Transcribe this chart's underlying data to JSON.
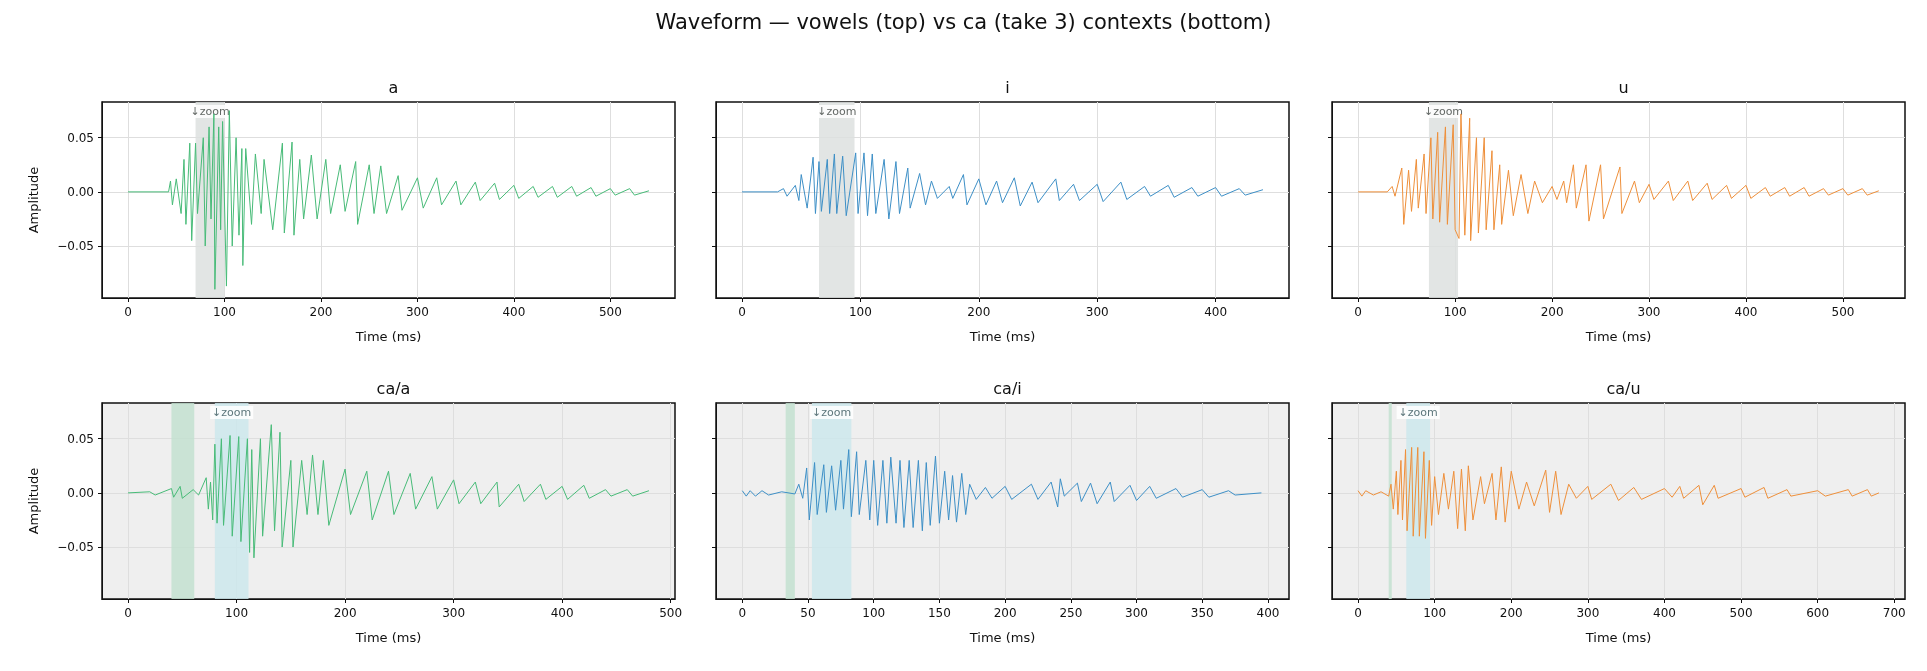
{
  "chart_data": [
    {
      "type": "line",
      "title": "a",
      "xlabel": "Time (ms)",
      "ylabel": "Amplitude",
      "annotations": [
        "Waveform — vowels (top) vs ca (take 3) contexts (bottom)"
      ],
      "xlim": [
        -27,
        567
      ],
      "ylim": [
        -0.098,
        0.083
      ],
      "xticks": [
        0,
        100,
        200,
        300,
        400,
        500
      ],
      "yticks": [
        {
          "value": -0.05,
          "label": "−0.05"
        },
        {
          "value": 0,
          "label": "0.00"
        },
        {
          "value": 0.05,
          "label": "0.05"
        }
      ],
      "grid": true,
      "marker": "none",
      "bands": [
        {
          "axis": "x",
          "from": 70,
          "to": 100,
          "label": "↓zoom",
          "color": "#dde1df"
        }
      ],
      "series": [
        {
          "color": "#48bb78",
          "x": [
            0,
            42,
            44,
            46,
            50,
            55,
            58,
            60,
            64,
            66,
            70,
            72,
            78,
            80,
            84,
            86,
            89,
            90,
            94,
            96,
            98,
            102,
            105,
            108,
            112,
            115,
            118,
            119,
            122,
            128,
            132,
            138,
            141,
            150,
            160,
            162,
            170,
            172,
            178,
            182,
            190,
            196,
            205,
            210,
            220,
            225,
            236,
            238,
            250,
            255,
            262,
            268,
            280,
            284,
            300,
            306,
            320,
            325,
            340,
            345,
            360,
            365,
            380,
            385,
            400,
            405,
            420,
            425,
            440,
            445,
            460,
            465,
            480,
            485,
            500,
            505,
            520,
            525,
            540
          ],
          "values": [
            0,
            0,
            0.01,
            -0.012,
            0.012,
            -0.02,
            0.03,
            -0.03,
            0.045,
            -0.045,
            0.045,
            -0.02,
            0.05,
            -0.05,
            0.06,
            -0.025,
            0.072,
            -0.09,
            0.06,
            -0.035,
            0.065,
            -0.087,
            0.075,
            -0.05,
            0.05,
            -0.04,
            0.04,
            -0.068,
            0.04,
            -0.03,
            0.035,
            -0.02,
            0.03,
            -0.035,
            0.045,
            -0.038,
            0.046,
            -0.04,
            0.03,
            -0.025,
            0.034,
            -0.025,
            0.03,
            -0.02,
            0.025,
            -0.018,
            0.028,
            -0.03,
            0.025,
            -0.02,
            0.024,
            -0.02,
            0.015,
            -0.017,
            0.013,
            -0.015,
            0.013,
            -0.012,
            0.01,
            -0.012,
            0.009,
            -0.008,
            0.008,
            -0.007,
            0.006,
            -0.006,
            0.005,
            -0.005,
            0.005,
            -0.005,
            0.005,
            -0.004,
            0.004,
            -0.004,
            0.003,
            -0.003,
            0.003,
            -0.003,
            0.001
          ]
        }
      ]
    },
    {
      "type": "line",
      "title": "i",
      "xlabel": "Time (ms)",
      "tick_labels": "x",
      "xlim": [
        -22,
        462
      ],
      "ylim": [
        -0.098,
        0.083
      ],
      "xticks": [
        0,
        100,
        200,
        300,
        400
      ],
      "yticks": [
        {
          "value": -0.05,
          "label": null
        },
        {
          "value": 0,
          "label": null
        },
        {
          "value": 0.05,
          "label": null
        }
      ],
      "grid": true,
      "marker": "none",
      "bands": [
        {
          "axis": "x",
          "from": 65,
          "to": 95,
          "label": "↓zoom",
          "color": "#dde1df"
        }
      ],
      "series": [
        {
          "color": "#3d8fc6",
          "x": [
            0,
            30,
            35,
            38,
            45,
            48,
            50,
            55,
            60,
            62,
            65,
            67,
            72,
            74,
            78,
            80,
            85,
            88,
            96,
            98,
            103,
            106,
            110,
            113,
            120,
            124,
            130,
            133,
            140,
            142,
            150,
            155,
            160,
            165,
            175,
            178,
            187,
            190,
            200,
            206,
            215,
            220,
            230,
            235,
            245,
            250,
            265,
            268,
            280,
            285,
            300,
            305,
            320,
            325,
            340,
            345,
            360,
            365,
            380,
            385,
            400,
            405,
            420,
            425,
            440
          ],
          "values": [
            0,
            0,
            0.003,
            -0.004,
            0.006,
            -0.008,
            0.016,
            -0.015,
            0.032,
            -0.02,
            0.028,
            -0.018,
            0.03,
            -0.02,
            0.035,
            -0.02,
            0.033,
            -0.022,
            0.036,
            -0.02,
            0.036,
            -0.022,
            0.035,
            -0.02,
            0.03,
            -0.025,
            0.028,
            -0.02,
            0.022,
            -0.015,
            0.017,
            -0.012,
            0.01,
            -0.006,
            0.005,
            -0.006,
            0.016,
            -0.012,
            0.012,
            -0.012,
            0.01,
            -0.01,
            0.013,
            -0.013,
            0.009,
            -0.01,
            0.012,
            -0.008,
            0.007,
            -0.008,
            0.007,
            -0.009,
            0.009,
            -0.007,
            0.005,
            -0.004,
            0.006,
            -0.005,
            0.004,
            -0.004,
            0.004,
            -0.004,
            0.003,
            -0.003,
            0.002
          ]
        }
      ]
    },
    {
      "type": "line",
      "title": "u",
      "xlabel": "Time (ms)",
      "tick_labels": "x",
      "xlim": [
        -27,
        564
      ],
      "ylim": [
        -0.098,
        0.083
      ],
      "xticks": [
        0,
        100,
        200,
        300,
        400,
        500
      ],
      "yticks": [
        {
          "value": -0.05,
          "label": null
        },
        {
          "value": 0,
          "label": null
        },
        {
          "value": 0.05,
          "label": null
        }
      ],
      "grid": true,
      "marker": "none",
      "bands": [
        {
          "axis": "x",
          "from": 73,
          "to": 103,
          "label": "↓zoom",
          "color": "#dde1df"
        }
      ],
      "series": [
        {
          "color": "#ee8f3a",
          "x": [
            0,
            30,
            35,
            38,
            45,
            47,
            52,
            55,
            60,
            62,
            68,
            70,
            75,
            77,
            82,
            84,
            90,
            92,
            98,
            100,
            104,
            106,
            110,
            115,
            116,
            122,
            124,
            130,
            132,
            138,
            140,
            146,
            148,
            155,
            160,
            168,
            175,
            182,
            190,
            200,
            205,
            212,
            215,
            222,
            225,
            235,
            238,
            250,
            253,
            270,
            272,
            285,
            290,
            300,
            305,
            320,
            325,
            340,
            345,
            360,
            365,
            380,
            385,
            400,
            405,
            420,
            425,
            440,
            445,
            460,
            465,
            480,
            485,
            500,
            505,
            520,
            525,
            537
          ],
          "values": [
            0,
            0,
            0.005,
            -0.004,
            0.022,
            -0.03,
            0.02,
            -0.018,
            0.03,
            -0.015,
            0.035,
            -0.02,
            0.05,
            -0.025,
            0.055,
            -0.028,
            0.06,
            -0.03,
            0.062,
            -0.035,
            -0.043,
            0.072,
            -0.04,
            0.068,
            -0.045,
            0.05,
            -0.038,
            0.05,
            -0.035,
            0.038,
            -0.035,
            0.025,
            -0.03,
            0.02,
            -0.022,
            0.016,
            -0.02,
            0.01,
            -0.01,
            0.005,
            -0.007,
            0.01,
            -0.01,
            0.025,
            -0.015,
            0.025,
            -0.027,
            0.025,
            -0.025,
            0.023,
            -0.02,
            0.01,
            -0.01,
            0.007,
            -0.007,
            0.01,
            -0.008,
            0.01,
            -0.008,
            0.008,
            -0.007,
            0.006,
            -0.006,
            0.006,
            -0.006,
            0.004,
            -0.004,
            0.004,
            -0.004,
            0.004,
            -0.004,
            0.003,
            -0.003,
            0.003,
            -0.003,
            0.003,
            -0.003,
            0.001
          ]
        }
      ]
    },
    {
      "type": "line",
      "title": "ca/a",
      "xlabel": "Time (ms)",
      "ylabel": "Amplitude",
      "xlim": [
        -24,
        504
      ],
      "ylim": [
        -0.098,
        0.083
      ],
      "xticks": [
        0,
        100,
        200,
        300,
        400,
        500
      ],
      "yticks": [
        {
          "value": -0.05,
          "label": "−0.05"
        },
        {
          "value": 0,
          "label": "0.00"
        },
        {
          "value": 0.05,
          "label": "0.05"
        }
      ],
      "grid": true,
      "marker": "none",
      "bands": [
        {
          "axis": "x",
          "from": 40,
          "to": 61,
          "color": "#c3e0d0"
        },
        {
          "axis": "x",
          "from": 80,
          "to": 111,
          "label": "↓zoom",
          "color": "#cde7ec"
        }
      ],
      "series": [
        {
          "color": "#48bb78",
          "x": [
            0,
            20,
            25,
            40,
            42,
            48,
            50,
            60,
            65,
            72,
            74,
            76,
            78,
            80,
            82,
            86,
            88,
            94,
            96,
            102,
            104,
            110,
            112,
            114,
            116,
            122,
            124,
            132,
            135,
            140,
            142,
            150,
            152,
            160,
            165,
            170,
            175,
            180,
            185,
            200,
            205,
            220,
            225,
            240,
            245,
            260,
            265,
            280,
            285,
            300,
            305,
            320,
            325,
            340,
            342,
            360,
            365,
            380,
            385,
            400,
            405,
            420,
            425,
            440,
            445,
            460,
            465,
            480
          ],
          "values": [
            0,
            0.001,
            -0.002,
            0.004,
            -0.004,
            0.006,
            -0.005,
            0.003,
            -0.002,
            0.014,
            -0.015,
            0.01,
            -0.025,
            0.045,
            -0.028,
            0.05,
            -0.03,
            0.053,
            -0.04,
            0.052,
            -0.045,
            0.05,
            -0.055,
            0.04,
            -0.06,
            0.05,
            -0.04,
            0.063,
            -0.035,
            0.056,
            -0.05,
            0.03,
            -0.05,
            0.03,
            -0.02,
            0.035,
            -0.02,
            0.03,
            -0.03,
            0.022,
            -0.02,
            0.02,
            -0.025,
            0.02,
            -0.02,
            0.018,
            -0.015,
            0.015,
            -0.015,
            0.012,
            -0.01,
            0.01,
            -0.01,
            0.01,
            -0.013,
            0.008,
            -0.008,
            0.008,
            -0.006,
            0.006,
            -0.006,
            0.007,
            -0.005,
            0.003,
            -0.003,
            0.003,
            -0.003,
            0.002
          ]
        }
      ]
    },
    {
      "type": "line",
      "title": "ca/i",
      "xlabel": "Time (ms)",
      "tick_labels": "x",
      "xlim": [
        -20,
        416
      ],
      "ylim": [
        -0.098,
        0.083
      ],
      "xticks": [
        0,
        50,
        100,
        150,
        200,
        250,
        300,
        350,
        400
      ],
      "yticks": [
        {
          "value": -0.05,
          "label": null
        },
        {
          "value": 0,
          "label": null
        },
        {
          "value": 0.05,
          "label": null
        }
      ],
      "grid": true,
      "marker": "none",
      "bands": [
        {
          "axis": "x",
          "from": 33,
          "to": 40,
          "color": "#c3e0d0"
        },
        {
          "axis": "x",
          "from": 53,
          "to": 83,
          "label": "↓zoom",
          "color": "#cde7ec"
        }
      ],
      "series": [
        {
          "color": "#3d8fc6",
          "x": [
            0,
            3,
            6,
            10,
            15,
            20,
            30,
            40,
            43,
            46,
            49,
            51,
            55,
            57,
            62,
            64,
            68,
            71,
            75,
            77,
            81,
            83,
            87,
            89,
            94,
            97,
            100,
            103,
            107,
            110,
            113,
            117,
            120,
            123,
            127,
            130,
            134,
            137,
            140,
            143,
            147,
            150,
            154,
            157,
            160,
            163,
            167,
            170,
            173,
            178,
            185,
            190,
            200,
            205,
            220,
            225,
            235,
            240,
            242,
            245,
            255,
            258,
            265,
            270,
            280,
            283,
            295,
            300,
            310,
            315,
            330,
            335,
            350,
            355,
            370,
            375,
            395
          ],
          "values": [
            0.002,
            -0.003,
            0.002,
            -0.003,
            0.002,
            -0.002,
            0.001,
            -0.001,
            0.008,
            -0.005,
            0.023,
            -0.025,
            0.028,
            -0.02,
            0.026,
            -0.018,
            0.025,
            -0.016,
            0.03,
            -0.015,
            0.04,
            -0.022,
            0.038,
            -0.02,
            0.03,
            -0.025,
            0.03,
            -0.03,
            0.03,
            -0.028,
            0.033,
            -0.028,
            0.03,
            -0.032,
            0.03,
            -0.032,
            0.03,
            -0.035,
            0.028,
            -0.03,
            0.034,
            -0.028,
            0.02,
            -0.025,
            0.016,
            -0.027,
            0.018,
            -0.02,
            0.008,
            -0.006,
            0.005,
            -0.005,
            0.006,
            -0.006,
            0.008,
            -0.006,
            0.01,
            -0.013,
            0.013,
            -0.003,
            0.009,
            -0.008,
            0.009,
            -0.01,
            0.01,
            -0.008,
            0.007,
            -0.007,
            0.006,
            -0.005,
            0.004,
            -0.004,
            0.003,
            -0.004,
            0.002,
            -0.002,
            0
          ]
        }
      ]
    },
    {
      "type": "line",
      "title": "ca/u",
      "xlabel": "Time (ms)",
      "tick_labels": "x",
      "xlim": [
        -34,
        714
      ],
      "ylim": [
        -0.098,
        0.083
      ],
      "xticks": [
        0,
        100,
        200,
        300,
        400,
        500,
        600,
        700
      ],
      "yticks": [
        {
          "value": -0.05,
          "label": null
        },
        {
          "value": 0,
          "label": null
        },
        {
          "value": 0.05,
          "label": null
        }
      ],
      "grid": true,
      "marker": "none",
      "bands": [
        {
          "axis": "x",
          "from": 40,
          "to": 44,
          "color": "#c3e0d0"
        },
        {
          "axis": "x",
          "from": 63,
          "to": 94,
          "label": "↓zoom",
          "color": "#cde7ec"
        }
      ],
      "series": [
        {
          "color": "#ee8f3a",
          "x": [
            0,
            5,
            10,
            20,
            30,
            40,
            43,
            46,
            50,
            52,
            56,
            58,
            62,
            64,
            70,
            72,
            78,
            80,
            86,
            88,
            93,
            96,
            100,
            105,
            112,
            118,
            125,
            130,
            135,
            140,
            144,
            150,
            160,
            165,
            175,
            180,
            187,
            192,
            200,
            210,
            220,
            230,
            245,
            250,
            258,
            265,
            275,
            285,
            300,
            305,
            330,
            340,
            360,
            370,
            400,
            410,
            420,
            425,
            445,
            450,
            465,
            470,
            500,
            505,
            530,
            535,
            560,
            565,
            600,
            610,
            640,
            645,
            665,
            670,
            680
          ],
          "values": [
            0.002,
            -0.003,
            0.002,
            -0.002,
            0.001,
            -0.003,
            0.008,
            -0.015,
            0.02,
            -0.02,
            0.03,
            -0.025,
            0.04,
            -0.035,
            0.042,
            -0.04,
            0.042,
            -0.04,
            0.038,
            -0.042,
            0.03,
            -0.03,
            0.015,
            -0.02,
            0.018,
            -0.015,
            0.02,
            -0.033,
            0.022,
            -0.035,
            0.025,
            -0.025,
            0.015,
            -0.01,
            0.018,
            -0.025,
            0.024,
            -0.027,
            0.02,
            -0.015,
            0.01,
            -0.012,
            0.021,
            -0.018,
            0.02,
            -0.02,
            0.008,
            -0.005,
            0.006,
            -0.006,
            0.008,
            -0.007,
            0.005,
            -0.006,
            0.004,
            -0.004,
            0.006,
            -0.005,
            0.007,
            -0.011,
            0.007,
            -0.005,
            0.004,
            -0.004,
            0.005,
            -0.005,
            0.003,
            -0.003,
            0.002,
            -0.003,
            0.003,
            -0.003,
            0.003,
            -0.003,
            0
          ]
        }
      ]
    }
  ]
}
